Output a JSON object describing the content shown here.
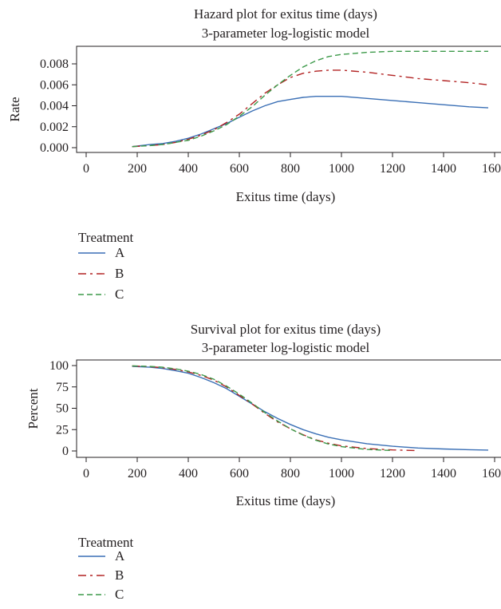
{
  "chart_data": [
    {
      "type": "line",
      "title": "Hazard plot for exitus time (days)",
      "subtitle": "3-parameter log-logistic model",
      "xlabel": "Exitus time (days)",
      "ylabel": "Rate",
      "xlim": [
        0,
        1600
      ],
      "ylim": [
        0,
        0.009
      ],
      "x_ticks": [
        0,
        200,
        400,
        600,
        800,
        1000,
        1200,
        1400,
        1600
      ],
      "y_ticks": [
        "0.000",
        "0.002",
        "0.004",
        "0.006",
        "0.008"
      ],
      "y_tick_values": [
        0,
        0.002,
        0.004,
        0.006,
        0.008
      ],
      "grid": false,
      "legend_title": "Treatment",
      "series": [
        {
          "name": "A",
          "color": "#3a6fb5",
          "dash": "solid",
          "x": [
            180,
            250,
            300,
            350,
            400,
            450,
            500,
            550,
            600,
            650,
            700,
            750,
            800,
            850,
            900,
            950,
            1000,
            1100,
            1200,
            1300,
            1400,
            1500,
            1575
          ],
          "y": [
            0.0001,
            0.0003,
            0.0004,
            0.0006,
            0.0009,
            0.0013,
            0.0018,
            0.0023,
            0.0029,
            0.0035,
            0.004,
            0.0044,
            0.0046,
            0.0048,
            0.0049,
            0.0049,
            0.0049,
            0.0047,
            0.0045,
            0.0043,
            0.0041,
            0.0039,
            0.0038
          ]
        },
        {
          "name": "B",
          "color": "#b22222",
          "dash": "long-short",
          "x": [
            180,
            250,
            300,
            350,
            400,
            450,
            500,
            550,
            600,
            650,
            700,
            750,
            800,
            850,
            900,
            950,
            1000,
            1100,
            1200,
            1300,
            1400,
            1500,
            1575
          ],
          "y": [
            0.0001,
            0.0002,
            0.0003,
            0.0005,
            0.0008,
            0.0012,
            0.0017,
            0.0024,
            0.0032,
            0.0042,
            0.0052,
            0.006,
            0.0067,
            0.0071,
            0.0073,
            0.0074,
            0.0074,
            0.0072,
            0.0069,
            0.0066,
            0.0064,
            0.0062,
            0.006
          ]
        },
        {
          "name": "C",
          "color": "#3d9a4a",
          "dash": "dashed",
          "x": [
            180,
            250,
            300,
            350,
            400,
            450,
            500,
            550,
            600,
            650,
            700,
            750,
            800,
            850,
            900,
            950,
            1000,
            1050,
            1100,
            1200,
            1300,
            1400,
            1500,
            1575
          ],
          "y": [
            0.0001,
            0.0002,
            0.0003,
            0.0005,
            0.0007,
            0.0011,
            0.0016,
            0.0022,
            0.003,
            0.0039,
            0.005,
            0.006,
            0.0069,
            0.0077,
            0.0083,
            0.0087,
            0.0089,
            0.009,
            0.0091,
            0.0092,
            0.0092,
            0.0092,
            0.0092,
            0.0092
          ]
        }
      ]
    },
    {
      "type": "line",
      "title": "Survival plot for exitus time (days)",
      "subtitle": "3-parameter log-logistic model",
      "xlabel": "Exitus time (days)",
      "ylabel": "Percent",
      "xlim": [
        0,
        1600
      ],
      "ylim": [
        0,
        100
      ],
      "x_ticks": [
        0,
        200,
        400,
        600,
        800,
        1000,
        1200,
        1400,
        1600
      ],
      "y_ticks": [
        "0",
        "25",
        "50",
        "75",
        "100"
      ],
      "y_tick_values": [
        0,
        25,
        50,
        75,
        100
      ],
      "grid": false,
      "legend_title": "Treatment",
      "series": [
        {
          "name": "A",
          "color": "#3a6fb5",
          "dash": "solid",
          "x": [
            180,
            250,
            300,
            350,
            400,
            450,
            500,
            550,
            600,
            650,
            700,
            750,
            800,
            850,
            900,
            950,
            1000,
            1100,
            1200,
            1300,
            1400,
            1500,
            1575
          ],
          "y": [
            99,
            98,
            96.5,
            94,
            91,
            86,
            80,
            73,
            64,
            55,
            46,
            38,
            31,
            25,
            20,
            16,
            13,
            8.5,
            5.5,
            3.5,
            2.3,
            1.5,
            1
          ]
        },
        {
          "name": "B",
          "color": "#b22222",
          "dash": "long-short",
          "x": [
            180,
            250,
            300,
            350,
            400,
            450,
            500,
            550,
            600,
            650,
            700,
            750,
            800,
            850,
            900,
            950,
            1000,
            1100,
            1200,
            1300
          ],
          "y": [
            99.5,
            98.7,
            97.5,
            95.5,
            92.5,
            88.5,
            83,
            75,
            65,
            55,
            44,
            34,
            26,
            19,
            13,
            9,
            6,
            2.8,
            1.2,
            0.5
          ]
        },
        {
          "name": "C",
          "color": "#3d9a4a",
          "dash": "dashed",
          "x": [
            180,
            250,
            300,
            350,
            400,
            450,
            500,
            550,
            600,
            650,
            700,
            750,
            800,
            850,
            900,
            950,
            1000,
            1100,
            1200
          ],
          "y": [
            99.6,
            99,
            98,
            96.2,
            93.5,
            89.5,
            84,
            76,
            66.5,
            56,
            45,
            35,
            26,
            18.5,
            12.5,
            8,
            5,
            1.8,
            0.5
          ]
        }
      ]
    }
  ]
}
